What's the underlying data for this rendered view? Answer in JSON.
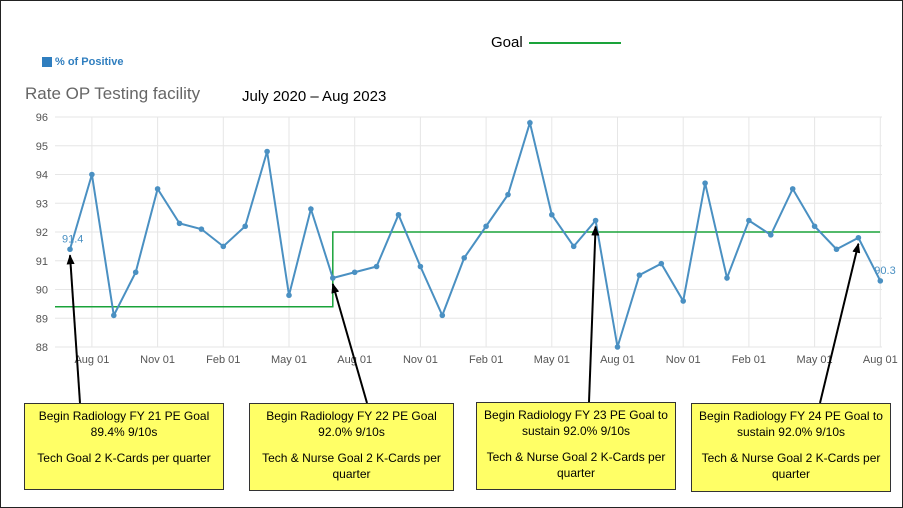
{
  "legend": {
    "goal_label": "Goal",
    "series_label": "% of Positive"
  },
  "header": {
    "title": "Rate OP Testing facility",
    "date_range": "July 2020 – Aug 2023"
  },
  "colors": {
    "series": "#4a90c2",
    "goal": "#1aa33a",
    "note_bg": "#ffff66",
    "grid": "#e6e6e6"
  },
  "chart_data": {
    "type": "line",
    "title": "Rate OP Testing facility",
    "xlabel": "",
    "ylabel": "",
    "ylim": [
      88,
      96
    ],
    "yticks": [
      88,
      89,
      90,
      91,
      92,
      93,
      94,
      95,
      96
    ],
    "x_tick_labels": [
      {
        "index": 1,
        "label": "Aug 01"
      },
      {
        "index": 4,
        "label": "Nov 01"
      },
      {
        "index": 7,
        "label": "Feb 01"
      },
      {
        "index": 10,
        "label": "May 01"
      },
      {
        "index": 13,
        "label": "Aug 01"
      },
      {
        "index": 16,
        "label": "Nov 01"
      },
      {
        "index": 19,
        "label": "Feb 01"
      },
      {
        "index": 22,
        "label": "May 01"
      },
      {
        "index": 25,
        "label": "Aug 01"
      },
      {
        "index": 28,
        "label": "Nov 01"
      },
      {
        "index": 31,
        "label": "Feb 01"
      },
      {
        "index": 34,
        "label": "May 01"
      },
      {
        "index": 37,
        "label": "Aug 01"
      }
    ],
    "series": [
      {
        "name": "% of Positive",
        "values": [
          91.4,
          94.0,
          89.1,
          90.6,
          93.5,
          92.3,
          92.1,
          91.5,
          92.2,
          94.8,
          89.8,
          92.8,
          90.4,
          90.6,
          90.8,
          92.6,
          90.8,
          89.1,
          91.1,
          92.2,
          93.3,
          95.8,
          92.6,
          91.5,
          92.4,
          88.0,
          90.5,
          90.9,
          89.6,
          93.7,
          90.4,
          92.4,
          91.9,
          93.5,
          92.2,
          91.4,
          91.8,
          90.3
        ]
      }
    ],
    "goal": [
      {
        "from": 0,
        "to": 12,
        "value": 89.4
      },
      {
        "from": 12,
        "to": 37.6,
        "value": 92.0
      }
    ],
    "data_labels": [
      {
        "index": 0,
        "text": "91.4"
      },
      {
        "index": 37,
        "text": "90.3"
      }
    ],
    "grid": true
  },
  "annotations": [
    {
      "arrow_index": 0,
      "line1": "Begin Radiology FY 21 PE Goal",
      "line2": "89.4%  9/10s",
      "line3": "Tech Goal 2 K-Cards per quarter"
    },
    {
      "arrow_index": 12,
      "line1": "Begin Radiology FY 22 PE Goal",
      "line2": "92.0%  9/10s",
      "line3": "Tech & Nurse Goal 2 K-Cards per quarter"
    },
    {
      "arrow_index": 24,
      "line1": "Begin Radiology FY 23 PE Goal to",
      "line2": "sustain 92.0%  9/10s",
      "line3": "Tech & Nurse Goal 2 K-Cards per quarter"
    },
    {
      "arrow_index": 36,
      "line1": "Begin Radiology FY 24 PE Goal to",
      "line2": "sustain 92.0%  9/10s",
      "line3": "Tech & Nurse Goal 2 K-Cards per quarter"
    }
  ]
}
